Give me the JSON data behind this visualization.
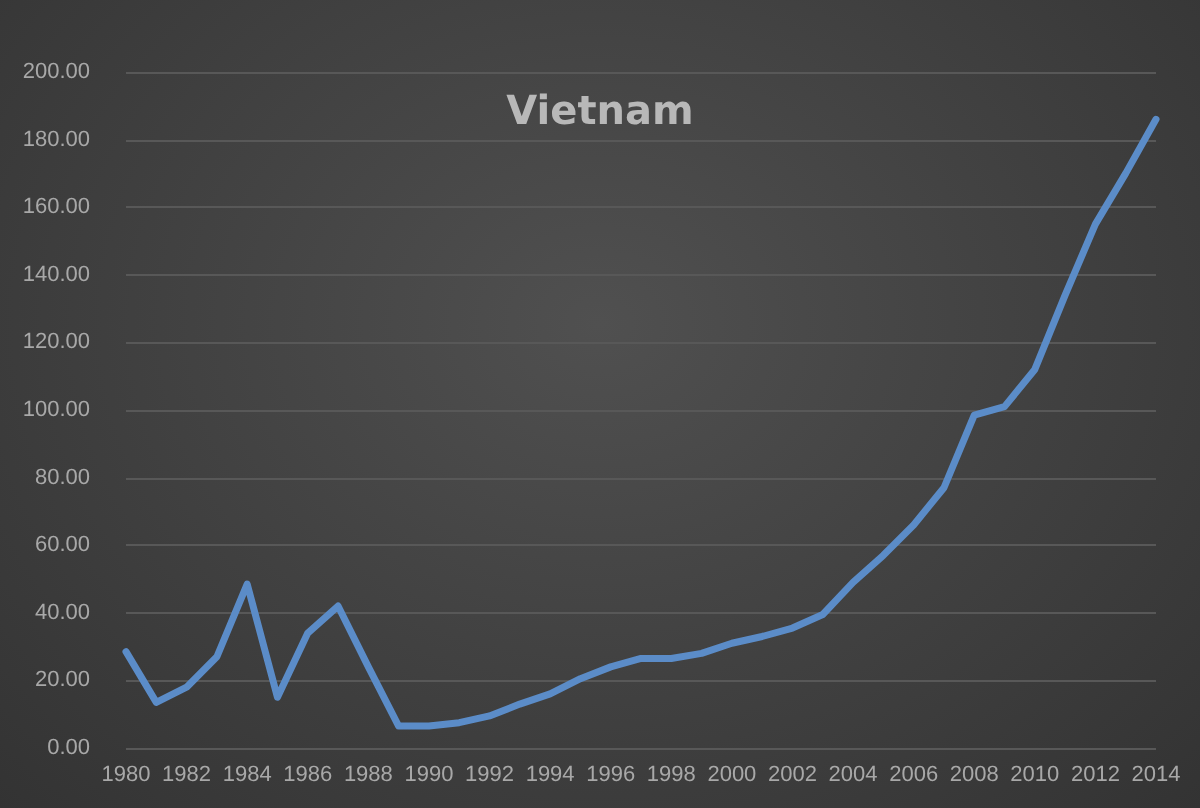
{
  "chart_data": {
    "type": "line",
    "title": "Vietnam",
    "categories": [
      "1980",
      null,
      "1982",
      null,
      "1984",
      null,
      "1986",
      null,
      "1988",
      null,
      "1990",
      null,
      "1992",
      null,
      "1994",
      null,
      "1996",
      null,
      "1998",
      null,
      "2000",
      null,
      "2002",
      null,
      "2004",
      null,
      "2006",
      null,
      "2008",
      null,
      "2010",
      null,
      "2012",
      null,
      "2014"
    ],
    "series": [
      {
        "color": "#5b8cc8",
        "values": [
          28.5,
          13.5,
          18,
          27,
          48.5,
          15,
          34,
          42,
          24,
          6.5,
          6.5,
          7.5,
          9.5,
          13,
          16,
          20.5,
          24,
          26.5,
          26.5,
          28,
          31,
          33,
          35.5,
          39.5,
          49,
          57,
          66,
          77,
          98.5,
          101,
          112,
          134,
          155,
          170,
          186
        ]
      }
    ],
    "ylim": [
      0,
      200
    ],
    "yticks": [
      {
        "value": 0,
        "label": "0.00"
      },
      {
        "value": 20,
        "label": "20.00"
      },
      {
        "value": 40,
        "label": "40.00"
      },
      {
        "value": 60,
        "label": "60.00"
      },
      {
        "value": 80,
        "label": "80.00"
      },
      {
        "value": 100,
        "label": "100.00"
      },
      {
        "value": 120,
        "label": "120.00"
      },
      {
        "value": 140,
        "label": "140.00"
      },
      {
        "value": 160,
        "label": "160.00"
      },
      {
        "value": 180,
        "label": "180.00"
      },
      {
        "value": 200,
        "label": "200.00"
      }
    ],
    "grid": "y",
    "marker": "none",
    "line_style": "solid"
  }
}
